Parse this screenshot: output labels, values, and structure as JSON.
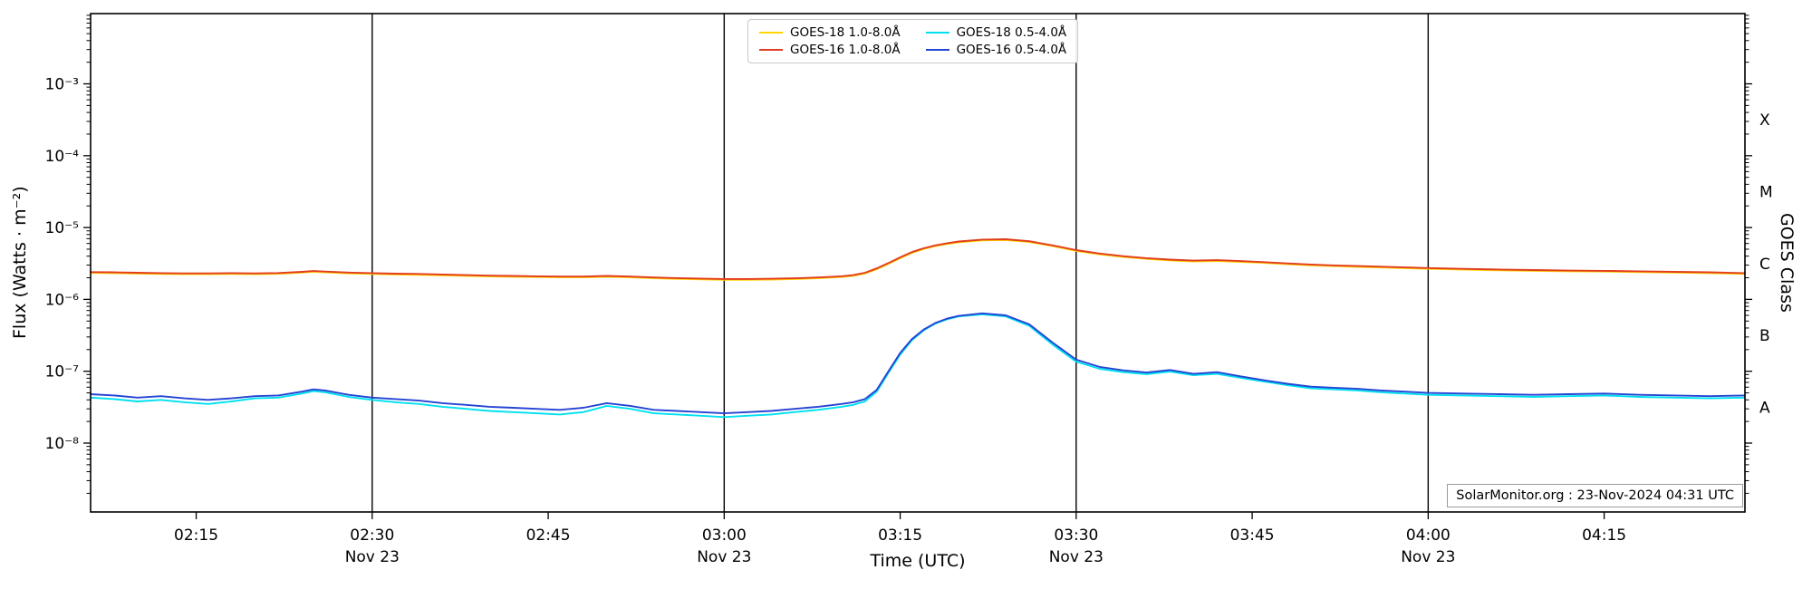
{
  "figure": {
    "watermark": "SolarMonitor.org : 23-Nov-2024 04:31 UTC",
    "background_color": "#ffffff",
    "axis_color": "#000000"
  },
  "chart_data": {
    "type": "line",
    "title": "",
    "xlabel": "Time (UTC)",
    "ylabel": "Flux (Watts · m⁻²)",
    "y2label": "GOES Class",
    "yscale": "log",
    "ylim": [
      1.1e-09,
      0.0095
    ],
    "xlim_minutes": [
      126,
      267
    ],
    "x_unit": "minutes after 00:00 UTC on 23-Nov-2024",
    "grid": false,
    "legend_position": "upper center",
    "day_line_minutes": [
      150,
      180,
      210,
      240
    ],
    "x_ticks": [
      {
        "m": 135,
        "label": "02:15"
      },
      {
        "m": 150,
        "label": "02:30",
        "sub": "Nov 23"
      },
      {
        "m": 165,
        "label": "02:45"
      },
      {
        "m": 180,
        "label": "03:00",
        "sub": "Nov 23"
      },
      {
        "m": 195,
        "label": "03:15"
      },
      {
        "m": 210,
        "label": "03:30",
        "sub": "Nov 23"
      },
      {
        "m": 225,
        "label": "03:45"
      },
      {
        "m": 240,
        "label": "04:00",
        "sub": "Nov 23"
      },
      {
        "m": 255,
        "label": "04:15"
      }
    ],
    "y_ticks": [
      {
        "exp": -3,
        "label": "10⁻³"
      },
      {
        "exp": -4,
        "label": "10⁻⁴"
      },
      {
        "exp": -5,
        "label": "10⁻⁵"
      },
      {
        "exp": -6,
        "label": "10⁻⁶"
      },
      {
        "exp": -7,
        "label": "10⁻⁷"
      },
      {
        "exp": -8,
        "label": "10⁻⁸"
      }
    ],
    "goes_class_letters": [
      {
        "label": "X",
        "exp": -3.5
      },
      {
        "label": "M",
        "exp": -4.5
      },
      {
        "label": "C",
        "exp": -5.5
      },
      {
        "label": "B",
        "exp": -6.5
      },
      {
        "label": "A",
        "exp": -7.5
      }
    ],
    "x_minutes": [
      126,
      128,
      130,
      132,
      134,
      136,
      138,
      140,
      142,
      144,
      145,
      146,
      148,
      150,
      152,
      154,
      156,
      158,
      160,
      162,
      164,
      166,
      168,
      170,
      172,
      174,
      176,
      178,
      180,
      182,
      184,
      186,
      188,
      190,
      191,
      192,
      193,
      194,
      195,
      196,
      197,
      198,
      199,
      200,
      202,
      204,
      206,
      208,
      210,
      212,
      214,
      216,
      218,
      220,
      222,
      224,
      226,
      228,
      230,
      232,
      234,
      236,
      238,
      240,
      243,
      246,
      249,
      252,
      255,
      258,
      261,
      264,
      267
    ],
    "series": [
      {
        "name": "GOES-18 1.0-8.0Å",
        "color": "#ffd400",
        "scale": 1e-06,
        "values": [
          2.34,
          2.32,
          2.29,
          2.26,
          2.24,
          2.24,
          2.26,
          2.24,
          2.27,
          2.36,
          2.42,
          2.38,
          2.3,
          2.26,
          2.22,
          2.2,
          2.16,
          2.13,
          2.09,
          2.07,
          2.05,
          2.03,
          2.03,
          2.07,
          2.03,
          1.97,
          1.93,
          1.9,
          1.87,
          1.87,
          1.89,
          1.92,
          1.97,
          2.05,
          2.13,
          2.29,
          2.63,
          3.12,
          3.75,
          4.44,
          5.02,
          5.51,
          5.9,
          6.24,
          6.63,
          6.71,
          6.29,
          5.51,
          4.73,
          4.24,
          3.9,
          3.66,
          3.49,
          3.38,
          3.43,
          3.33,
          3.22,
          3.09,
          2.98,
          2.9,
          2.84,
          2.78,
          2.72,
          2.66,
          2.59,
          2.54,
          2.5,
          2.46,
          2.44,
          2.4,
          2.36,
          2.32,
          2.26
        ]
      },
      {
        "name": "GOES-16 1.0-8.0Å",
        "color": "#e23d1e",
        "scale": 1e-06,
        "values": [
          2.4,
          2.38,
          2.35,
          2.32,
          2.3,
          2.3,
          2.32,
          2.3,
          2.33,
          2.42,
          2.48,
          2.44,
          2.36,
          2.32,
          2.28,
          2.26,
          2.22,
          2.18,
          2.14,
          2.12,
          2.1,
          2.08,
          2.08,
          2.12,
          2.08,
          2.02,
          1.98,
          1.95,
          1.92,
          1.92,
          1.94,
          1.97,
          2.02,
          2.1,
          2.18,
          2.35,
          2.7,
          3.2,
          3.85,
          4.55,
          5.15,
          5.65,
          6.05,
          6.4,
          6.8,
          6.88,
          6.45,
          5.65,
          4.85,
          4.35,
          4.0,
          3.75,
          3.58,
          3.47,
          3.52,
          3.42,
          3.3,
          3.17,
          3.06,
          2.97,
          2.91,
          2.85,
          2.79,
          2.73,
          2.66,
          2.61,
          2.56,
          2.52,
          2.5,
          2.46,
          2.42,
          2.38,
          2.32
        ]
      },
      {
        "name": "GOES-18 0.5-4.0Å",
        "color": "#00e0f0",
        "scale": 1e-08,
        "values": [
          4.3,
          4.1,
          3.8,
          4.0,
          3.7,
          3.5,
          3.8,
          4.2,
          4.3,
          4.9,
          5.3,
          5.1,
          4.4,
          4.0,
          3.7,
          3.5,
          3.2,
          3.0,
          2.8,
          2.7,
          2.6,
          2.5,
          2.7,
          3.3,
          3.0,
          2.6,
          2.5,
          2.4,
          2.3,
          2.4,
          2.5,
          2.7,
          2.9,
          3.2,
          3.4,
          3.8,
          5.2,
          9.5,
          17,
          27,
          37,
          46,
          53,
          58,
          62,
          58,
          43,
          23.5,
          13.6,
          10.8,
          9.7,
          9.1,
          9.9,
          8.8,
          9.2,
          8.1,
          7.2,
          6.4,
          5.8,
          5.6,
          5.4,
          5.1,
          4.9,
          4.7,
          4.6,
          4.5,
          4.4,
          4.5,
          4.6,
          4.4,
          4.3,
          4.2,
          4.3
        ]
      },
      {
        "name": "GOES-16 0.5-4.0Å",
        "color": "#2444d4",
        "scale": 1e-08,
        "values": [
          4.8,
          4.6,
          4.3,
          4.5,
          4.2,
          4.0,
          4.2,
          4.5,
          4.6,
          5.2,
          5.6,
          5.4,
          4.7,
          4.3,
          4.1,
          3.9,
          3.6,
          3.4,
          3.2,
          3.1,
          3.0,
          2.9,
          3.1,
          3.6,
          3.3,
          2.9,
          2.8,
          2.7,
          2.6,
          2.7,
          2.8,
          3.0,
          3.2,
          3.5,
          3.7,
          4.1,
          5.5,
          10,
          18,
          28,
          38,
          47,
          54,
          59,
          64,
          60,
          45,
          25,
          14.5,
          11.5,
          10.3,
          9.6,
          10.4,
          9.2,
          9.7,
          8.5,
          7.5,
          6.7,
          6.1,
          5.9,
          5.7,
          5.4,
          5.2,
          5.0,
          4.9,
          4.8,
          4.7,
          4.8,
          4.9,
          4.7,
          4.6,
          4.5,
          4.6
        ]
      }
    ]
  }
}
